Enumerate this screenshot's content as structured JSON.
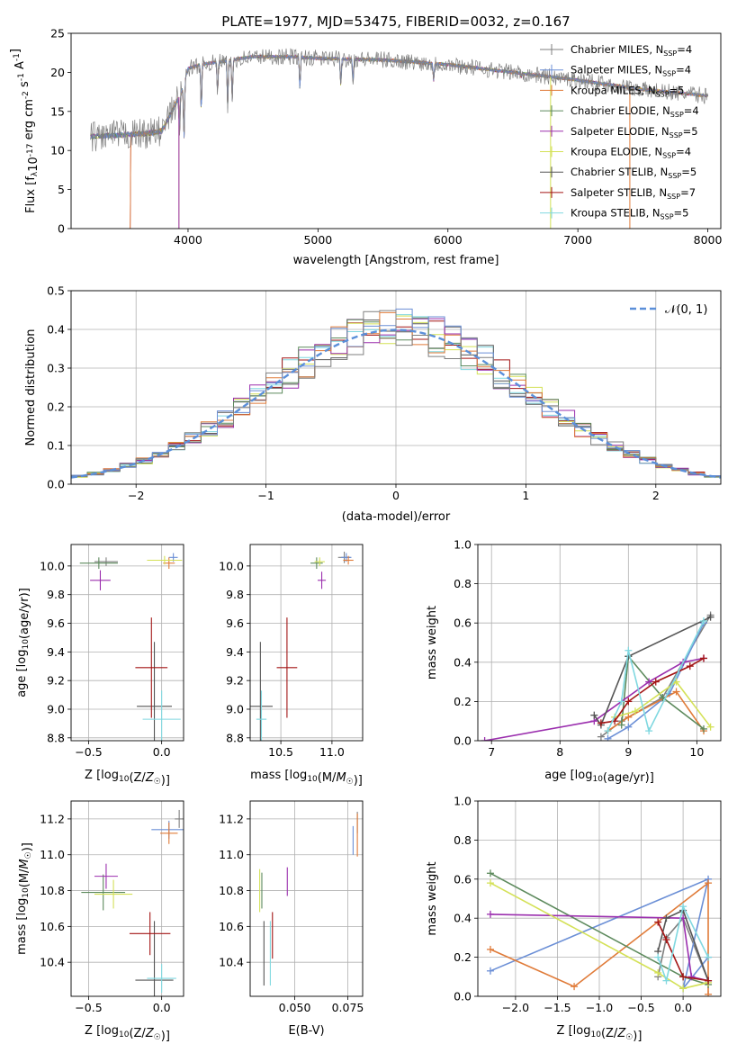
{
  "figure_title": "PLATE=1977, MJD=53475, FIBERID=0032, z=0.167",
  "legend_entries": [
    {
      "text": "Chabrier MILES, N",
      "sub": "SSP",
      "after": "=4",
      "color": "#7f7f7f"
    },
    {
      "text": "Salpeter MILES, N",
      "sub": "SSP",
      "after": "=4",
      "color": "#6b8fd6"
    },
    {
      "text": "Kroupa MILES, N",
      "sub": "SSP",
      "after": "=5",
      "color": "#e07b39"
    },
    {
      "text": "Chabrier ELODIE, N",
      "sub": "SSP",
      "after": "=4",
      "color": "#5d8a5d"
    },
    {
      "text": "Salpeter ELODIE, N",
      "sub": "SSP",
      "after": "=5",
      "color": "#9b2fae"
    },
    {
      "text": "Kroupa ELODIE, N",
      "sub": "SSP",
      "after": "=4",
      "color": "#d4e157"
    },
    {
      "text": "Chabrier STELIB, N",
      "sub": "SSP",
      "after": "=5",
      "color": "#555555"
    },
    {
      "text": "Salpeter STELIB, N",
      "sub": "SSP",
      "after": "=7",
      "color": "#a31515"
    },
    {
      "text": "Kroupa STELIB, N",
      "sub": "SSP",
      "after": "=5",
      "color": "#80d8e0"
    }
  ],
  "chart_data": [
    {
      "id": "spectrum",
      "type": "line",
      "xlabel": "wavelength [Angstrom, rest frame]",
      "ylabel": "Flux [f_λ 10^-17 erg cm^-2 s^-1 A^-1]",
      "xlim": [
        3100,
        8100
      ],
      "ylim": [
        0,
        25
      ],
      "xticks": [
        4000,
        5000,
        6000,
        7000,
        8000
      ],
      "yticks": [
        0,
        5,
        10,
        15,
        20,
        25
      ],
      "grid": false,
      "legend": "top-right",
      "continuum": [
        [
          3250,
          11.8
        ],
        [
          3500,
          12.0
        ],
        [
          3700,
          12.2
        ],
        [
          3800,
          12.5
        ],
        [
          3950,
          17.5
        ],
        [
          4000,
          20.5
        ],
        [
          4100,
          21.0
        ],
        [
          4300,
          21.5
        ],
        [
          4500,
          22.0
        ],
        [
          4800,
          22.0
        ],
        [
          5000,
          21.8
        ],
        [
          5500,
          21.6
        ],
        [
          6000,
          21.0
        ],
        [
          6500,
          20.0
        ],
        [
          7000,
          19.0
        ],
        [
          7500,
          17.8
        ],
        [
          8000,
          17.0
        ]
      ],
      "absorption_features": [
        [
          3934,
          12.5
        ],
        [
          3969,
          11.5
        ],
        [
          4102,
          15.0
        ],
        [
          4227,
          17.5
        ],
        [
          4305,
          15.5
        ],
        [
          4340,
          16.5
        ],
        [
          4861,
          18.0
        ],
        [
          5175,
          18.5
        ],
        [
          5270,
          19.0
        ],
        [
          5890,
          19.0
        ],
        [
          6563,
          19.5
        ]
      ]
    },
    {
      "id": "residuals",
      "type": "line",
      "xlabel": "(data-model)/error",
      "ylabel": "Normed distribution",
      "xlim": [
        -2.5,
        2.5
      ],
      "ylim": [
        0,
        0.5
      ],
      "xticks": [
        -2,
        -1,
        0,
        1,
        2
      ],
      "yticks": [
        0.0,
        0.1,
        0.2,
        0.3,
        0.4,
        0.5
      ],
      "grid": true,
      "legend": "top-right",
      "legend_label": "𝒩(0, 1)",
      "histogram_bins": 40,
      "series": [
        {
          "name": "𝒩(0, 1)",
          "mean": 0,
          "sigma": 1
        }
      ]
    },
    {
      "id": "age-vs-Z",
      "type": "scatter",
      "xlabel": "Z [log10(Z/Z☉)]",
      "ylabel": "age [log10(age/yr)]",
      "xlim": [
        -0.62,
        0.15
      ],
      "ylim": [
        8.78,
        10.15
      ],
      "xticks": [
        -0.5,
        0.0
      ],
      "yticks": [
        8.8,
        9.0,
        9.2,
        9.4,
        9.6,
        9.8,
        10.0
      ],
      "grid": true,
      "points": [
        {
          "x": -0.38,
          "y": 10.03,
          "xerr": 0.08,
          "yerr": 0.03,
          "series": 0
        },
        {
          "x": 0.08,
          "y": 10.06,
          "xerr": 0.03,
          "yerr": 0.03,
          "series": 1
        },
        {
          "x": 0.05,
          "y": 10.02,
          "xerr": 0.04,
          "yerr": 0.04,
          "series": 2
        },
        {
          "x": -0.43,
          "y": 10.02,
          "xerr": 0.13,
          "yerr": 0.04,
          "series": 3
        },
        {
          "x": -0.42,
          "y": 9.9,
          "xerr": 0.07,
          "yerr": 0.07,
          "series": 4
        },
        {
          "x": 0.02,
          "y": 10.04,
          "xerr": 0.12,
          "yerr": 0.03,
          "series": 5
        },
        {
          "x": -0.05,
          "y": 9.02,
          "xerr": 0.12,
          "yerr": 0.45,
          "series": 6
        },
        {
          "x": -0.07,
          "y": 9.29,
          "xerr": 0.11,
          "yerr": 0.35,
          "series": 7
        },
        {
          "x": 0.0,
          "y": 8.93,
          "xerr": 0.13,
          "yerr": 0.2,
          "series": 8
        }
      ]
    },
    {
      "id": "age-vs-mass",
      "type": "scatter",
      "xlabel": "mass [log10(M/M☉)]",
      "ylabel": "",
      "xlim": [
        10.2,
        11.3
      ],
      "ylim": [
        8.78,
        10.15
      ],
      "xticks": [
        10.5,
        11.0
      ],
      "yticks": [
        8.8,
        9.0,
        9.2,
        9.4,
        9.6,
        9.8,
        10.0
      ],
      "grid": true,
      "points": [
        {
          "x": 11.12,
          "y": 10.06,
          "xerr": 0.06,
          "yerr": 0.04,
          "series": 0
        },
        {
          "x": 11.14,
          "y": 10.06,
          "xerr": 0.05,
          "yerr": 0.03,
          "series": 1
        },
        {
          "x": 11.16,
          "y": 10.04,
          "xerr": 0.05,
          "yerr": 0.03,
          "series": 2
        },
        {
          "x": 10.85,
          "y": 10.02,
          "xerr": 0.06,
          "yerr": 0.04,
          "series": 3
        },
        {
          "x": 10.9,
          "y": 9.9,
          "xerr": 0.04,
          "yerr": 0.06,
          "series": 4
        },
        {
          "x": 10.88,
          "y": 10.03,
          "xerr": 0.05,
          "yerr": 0.03,
          "series": 5
        },
        {
          "x": 10.3,
          "y": 9.02,
          "xerr": 0.12,
          "yerr": 0.45,
          "series": 6
        },
        {
          "x": 10.56,
          "y": 9.29,
          "xerr": 0.1,
          "yerr": 0.35,
          "series": 7
        },
        {
          "x": 10.31,
          "y": 8.93,
          "xerr": 0.05,
          "yerr": 0.2,
          "series": 8
        }
      ]
    },
    {
      "id": "weight-vs-age",
      "type": "line",
      "xlabel": "age  [log10(age/yr)]",
      "ylabel": "mass weight",
      "xlim": [
        6.8,
        10.35
      ],
      "ylim": [
        0,
        1.0
      ],
      "xticks": [
        7,
        8,
        9,
        10
      ],
      "yticks": [
        0.0,
        0.2,
        0.4,
        0.6,
        0.8,
        1.0
      ],
      "grid": true,
      "series": [
        {
          "x": [
            8.6,
            8.9,
            9.5,
            10.2
          ],
          "y": [
            0.02,
            0.1,
            0.22,
            0.64
          ]
        },
        {
          "x": [
            8.7,
            9.0,
            9.6,
            10.1
          ],
          "y": [
            0.01,
            0.07,
            0.24,
            0.6
          ]
        },
        {
          "x": [
            8.7,
            9.0,
            9.7,
            10.1
          ],
          "y": [
            0.05,
            0.12,
            0.25,
            0.05
          ]
        },
        {
          "x": [
            8.9,
            9.0,
            9.5,
            10.1
          ],
          "y": [
            0.08,
            0.43,
            0.22,
            0.06
          ]
        },
        {
          "x": [
            6.9,
            8.5,
            9.3,
            9.8,
            10.1
          ],
          "y": [
            0.0,
            0.1,
            0.3,
            0.4,
            0.42
          ]
        },
        {
          "x": [
            8.8,
            9.1,
            9.7,
            10.2
          ],
          "y": [
            0.12,
            0.15,
            0.3,
            0.07
          ]
        },
        {
          "x": [
            8.5,
            8.6,
            9.0,
            10.2
          ],
          "y": [
            0.13,
            0.08,
            0.43,
            0.63
          ]
        },
        {
          "x": [
            8.6,
            8.8,
            9.0,
            9.4,
            9.9,
            10.1
          ],
          "y": [
            0.09,
            0.1,
            0.2,
            0.3,
            0.38,
            0.42
          ]
        },
        {
          "x": [
            8.7,
            8.9,
            9.0,
            9.3,
            10.1
          ],
          "y": [
            0.05,
            0.2,
            0.46,
            0.05,
            0.61
          ]
        }
      ]
    },
    {
      "id": "mass-vs-Z",
      "type": "scatter",
      "xlabel": "Z [log10(Z/Z☉)]",
      "ylabel": "mass [log10(M/M☉)]",
      "xlim": [
        -0.62,
        0.15
      ],
      "ylim": [
        10.21,
        11.3
      ],
      "xticks": [
        -0.5,
        0.0
      ],
      "yticks": [
        10.4,
        10.6,
        10.8,
        11.0,
        11.2
      ],
      "grid": true,
      "points": [
        {
          "x": 0.12,
          "y": 11.2,
          "xerr": 0.03,
          "yerr": 0.05,
          "series": 0
        },
        {
          "x": 0.05,
          "y": 11.14,
          "xerr": 0.12,
          "yerr": 0.05,
          "series": 1
        },
        {
          "x": 0.05,
          "y": 11.12,
          "xerr": 0.06,
          "yerr": 0.06,
          "series": 2
        },
        {
          "x": -0.4,
          "y": 10.79,
          "xerr": 0.15,
          "yerr": 0.1,
          "series": 3
        },
        {
          "x": -0.38,
          "y": 10.88,
          "xerr": 0.08,
          "yerr": 0.07,
          "series": 4
        },
        {
          "x": -0.33,
          "y": 10.78,
          "xerr": 0.13,
          "yerr": 0.08,
          "series": 5
        },
        {
          "x": -0.05,
          "y": 10.3,
          "xerr": 0.13,
          "yerr": 0.33,
          "series": 6
        },
        {
          "x": -0.08,
          "y": 10.56,
          "xerr": 0.14,
          "yerr": 0.12,
          "series": 7
        },
        {
          "x": 0.0,
          "y": 10.31,
          "xerr": 0.1,
          "yerr": 0.08,
          "series": 8
        }
      ]
    },
    {
      "id": "mass-vs-EBV",
      "type": "scatter",
      "xlabel": "E(B-V)",
      "ylabel": "",
      "xlim": [
        0.029,
        0.082
      ],
      "ylim": [
        10.21,
        11.3
      ],
      "xticks": [
        0.05,
        0.075
      ],
      "tick_labels": [
        "0.050",
        "0.075"
      ],
      "yticks": [
        10.4,
        10.6,
        10.8,
        11.0,
        11.2
      ],
      "grid": true,
      "points": [
        {
          "x": 0.0795,
          "y": 11.18,
          "xerr": 0.0,
          "yerr": 0.06,
          "series": 0
        },
        {
          "x": 0.0775,
          "y": 11.08,
          "xerr": 0.0,
          "yerr": 0.08,
          "series": 1
        },
        {
          "x": 0.0795,
          "y": 11.11,
          "xerr": 0.0,
          "yerr": 0.12,
          "series": 2
        },
        {
          "x": 0.0345,
          "y": 10.8,
          "xerr": 0.0,
          "yerr": 0.1,
          "series": 3
        },
        {
          "x": 0.0465,
          "y": 10.85,
          "xerr": 0.0,
          "yerr": 0.08,
          "series": 4
        },
        {
          "x": 0.0335,
          "y": 10.8,
          "xerr": 0.0,
          "yerr": 0.12,
          "series": 5
        },
        {
          "x": 0.0355,
          "y": 10.45,
          "xerr": 0.0,
          "yerr": 0.18,
          "series": 6
        },
        {
          "x": 0.0395,
          "y": 10.55,
          "xerr": 0.0,
          "yerr": 0.13,
          "series": 7
        },
        {
          "x": 0.0385,
          "y": 10.45,
          "xerr": 0.0,
          "yerr": 0.18,
          "series": 8
        }
      ]
    },
    {
      "id": "weight-vs-Z",
      "type": "line",
      "xlabel": "Z [log10(Z/Z☉)]",
      "ylabel": "mass weight",
      "xlim": [
        -2.45,
        0.45
      ],
      "ylim": [
        0,
        1.0
      ],
      "xticks": [
        -2.0,
        -1.5,
        -1.0,
        -0.5,
        0.0
      ],
      "yticks": [
        0.0,
        0.2,
        0.4,
        0.6,
        0.8,
        1.0
      ],
      "grid": true,
      "series": [
        {
          "x": [
            -0.3,
            -0.2,
            0.0,
            0.3
          ],
          "y": [
            0.1,
            0.3,
            0.4,
            0.08
          ]
        },
        {
          "x": [
            -2.3,
            0.3,
            0.0,
            0.3
          ],
          "y": [
            0.13,
            0.6,
            0.04,
            0.2
          ]
        },
        {
          "x": [
            -2.3,
            -1.3,
            0.3,
            0.3
          ],
          "y": [
            0.24,
            0.05,
            0.58,
            0.01
          ]
        },
        {
          "x": [
            -2.3,
            0.0,
            0.3
          ],
          "y": [
            0.63,
            0.1,
            0.06
          ]
        },
        {
          "x": [
            -2.3,
            0.0,
            0.1,
            0.3
          ],
          "y": [
            0.42,
            0.4,
            0.1,
            0.08
          ]
        },
        {
          "x": [
            -2.3,
            -0.3,
            0.0,
            0.3
          ],
          "y": [
            0.58,
            0.12,
            0.04,
            0.07
          ]
        },
        {
          "x": [
            -0.3,
            -0.2,
            0.0,
            0.3
          ],
          "y": [
            0.23,
            0.4,
            0.44,
            0.08
          ]
        },
        {
          "x": [
            -0.3,
            -0.2,
            0.0,
            0.3
          ],
          "y": [
            0.38,
            0.29,
            0.1,
            0.08
          ]
        },
        {
          "x": [
            -0.3,
            -0.2,
            0.0,
            0.3
          ],
          "y": [
            0.2,
            0.08,
            0.46,
            0.2
          ]
        }
      ]
    }
  ]
}
